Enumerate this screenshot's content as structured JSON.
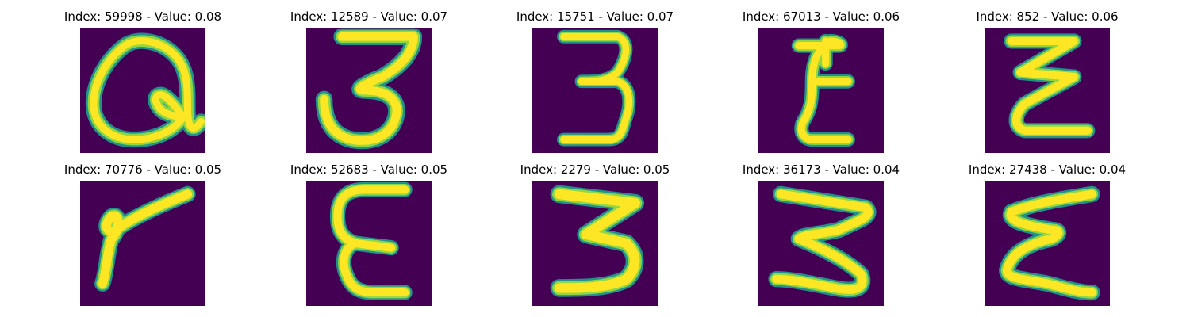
{
  "figure": {
    "background": "#ffffff",
    "image_background": "#440154",
    "stroke_colors": {
      "core": "#fde725",
      "mid": "#8fd744",
      "edge": "#21918c"
    },
    "panels": [
      {
        "title": "Index: 59998 - Value: 0.08",
        "index": 59998,
        "value": 0.08,
        "glyph": "a-shape"
      },
      {
        "title": "Index: 12589 - Value: 0.07",
        "index": 12589,
        "value": 0.07,
        "glyph": "three-open"
      },
      {
        "title": "Index: 15751 - Value: 0.07",
        "index": 15751,
        "value": 0.07,
        "glyph": "three-narrow"
      },
      {
        "title": "Index: 67013 - Value: 0.06",
        "index": 67013,
        "value": 0.06,
        "glyph": "z-slash"
      },
      {
        "title": "Index: 852 - Value: 0.06",
        "index": 852,
        "value": 0.06,
        "glyph": "z-zigzag"
      },
      {
        "title": "Index: 70776 - Value: 0.05",
        "index": 70776,
        "value": 0.05,
        "glyph": "seven-bent"
      },
      {
        "title": "Index: 52683 - Value: 0.05",
        "index": 52683,
        "value": 0.05,
        "glyph": "epsilon"
      },
      {
        "title": "Index: 2279 - Value: 0.05",
        "index": 2279,
        "value": 0.05,
        "glyph": "three-bold"
      },
      {
        "title": "Index: 36173 - Value: 0.04",
        "index": 36173,
        "value": 0.04,
        "glyph": "three-wide"
      },
      {
        "title": "Index: 27438 - Value: 0.04",
        "index": 27438,
        "value": 0.04,
        "glyph": "z-epsilon"
      }
    ]
  }
}
